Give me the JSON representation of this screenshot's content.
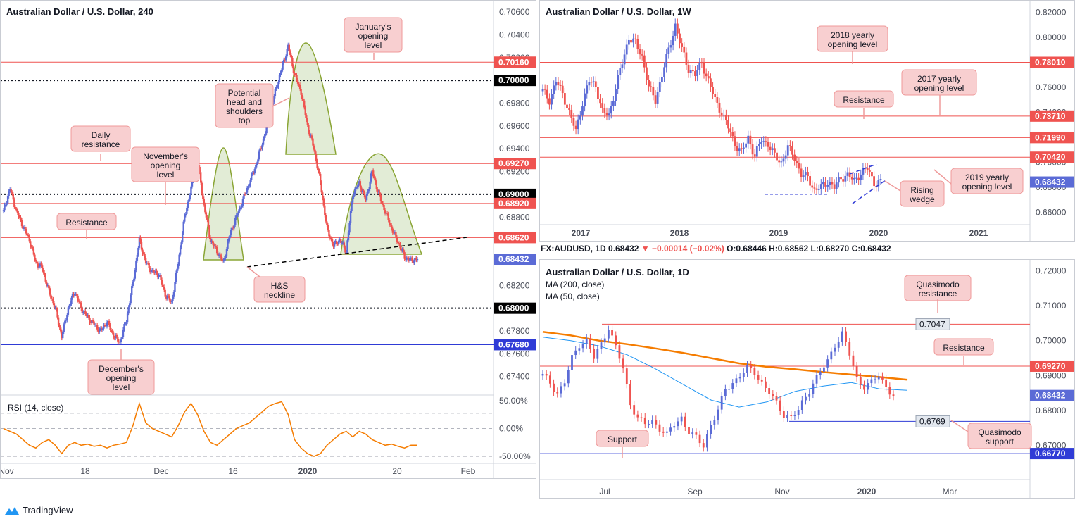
{
  "app": {
    "brand": "TradingView"
  },
  "panels": {
    "p240": {
      "title": "Australian Dollar / U.S. Dollar, 240",
      "rsi_label": "RSI (14, close)"
    },
    "p1w": {
      "title": "Australian Dollar / U.S. Dollar, 1W"
    },
    "p1d": {
      "title": "Australian Dollar / U.S. Dollar, 1D",
      "ma200": "MA (200, close)",
      "ma50": "MA (50, close)",
      "ohlc": {
        "symbol": "FX:AUDUSD, 1D",
        "last": "0.68432",
        "change": "▼ −0.00014 (−0.02%)",
        "o": "O:0.68446",
        "h": "H:0.68562",
        "l": "L:0.68270",
        "c": "C:0.68432"
      }
    }
  },
  "colors": {
    "up": "#5b6bd6",
    "down": "#ef5350",
    "level": "#ef5350",
    "support": "#2f3bd6",
    "ma200": "#f57c00",
    "ma50": "#2196f3",
    "rsi": "#f57c00",
    "pattern": "#8aa535",
    "callout_bg": "#f8cfd0",
    "callout_border": "#ef9a9a"
  },
  "chart_data": [
    {
      "type": "line",
      "panel": "p240",
      "title": "Australian Dollar / U.S. Dollar, 240",
      "ylim": [
        0.6725,
        0.7065
      ],
      "y_ticks": [
        "0.70600",
        "0.70400",
        "0.70200",
        "0.70000",
        "0.69800",
        "0.69600",
        "0.69400",
        "0.69200",
        "0.69000",
        "0.68800",
        "0.68600",
        "0.68400",
        "0.68200",
        "0.68000",
        "0.67800",
        "0.67600",
        "0.67400"
      ],
      "x_ticks": [
        "Nov",
        "18",
        "Dec",
        "16",
        "2020",
        "20",
        "Feb"
      ],
      "series": [
        {
          "values": [
            0.6885,
            0.6905,
            0.6885,
            0.6872,
            0.686,
            0.684,
            0.6835,
            0.6815,
            0.68,
            0.6775,
            0.68,
            0.6815,
            0.68,
            0.6792,
            0.6786,
            0.678,
            0.6788,
            0.6776,
            0.677,
            0.679,
            0.6822,
            0.686,
            0.684,
            0.6832,
            0.683,
            0.6812,
            0.6805,
            0.684,
            0.688,
            0.6905,
            0.693,
            0.689,
            0.686,
            0.685,
            0.684,
            0.6865,
            0.688,
            0.6895,
            0.691,
            0.6925,
            0.6945,
            0.6965,
            0.699,
            0.701,
            0.703,
            0.7005,
            0.699,
            0.696,
            0.694,
            0.691,
            0.687,
            0.6855,
            0.686,
            0.685,
            0.69,
            0.691,
            0.6895,
            0.692,
            0.69,
            0.6885,
            0.687,
            0.6858,
            0.6845,
            0.6842,
            0.6843
          ]
        }
      ],
      "levels": [
        {
          "price": 0.7016,
          "label": "0.70160",
          "style": "red"
        },
        {
          "price": 0.7,
          "label": "0.70000",
          "style": "dotted"
        },
        {
          "price": 0.6927,
          "label": "0.69270",
          "style": "red"
        },
        {
          "price": 0.69,
          "label": "0.69000",
          "style": "dotted"
        },
        {
          "price": 0.6892,
          "label": "0.68920",
          "style": "red"
        },
        {
          "price": 0.6862,
          "label": "0.68620",
          "style": "red"
        },
        {
          "price": 0.6843,
          "label": "0.68432",
          "style": "current"
        },
        {
          "price": 0.68,
          "label": "0.68000",
          "style": "dotted"
        },
        {
          "price": 0.6768,
          "label": "0.67680",
          "style": "blue"
        }
      ],
      "annotations": [
        "January's opening level",
        "Potential head and shoulders top",
        "Daily resistance",
        "November's opening level",
        "Resistance",
        "H&S neckline",
        "December's opening level"
      ],
      "rsi": {
        "label": "RSI (14, close)",
        "ylim": [
          -60,
          60
        ],
        "y_ticks": [
          "50.00%",
          "0.00%",
          "-50.00%"
        ],
        "values": [
          0,
          -5,
          -10,
          -20,
          -30,
          -35,
          -25,
          -20,
          -30,
          -45,
          -30,
          -25,
          -30,
          -28,
          -32,
          -30,
          -35,
          -30,
          -28,
          -25,
          5,
          45,
          10,
          0,
          -5,
          -10,
          -15,
          5,
          30,
          45,
          25,
          -5,
          -25,
          -30,
          -20,
          -10,
          0,
          5,
          10,
          20,
          30,
          40,
          45,
          48,
          25,
          -20,
          -35,
          -45,
          -50,
          -45,
          -30,
          -20,
          -10,
          -5,
          -15,
          -5,
          -10,
          -20,
          -25,
          -30,
          -28,
          -32,
          -35,
          -30,
          -30
        ]
      }
    },
    {
      "type": "line",
      "panel": "p1w",
      "title": "Australian Dollar / U.S. Dollar, 1W",
      "ylim": [
        0.6525,
        0.8215
      ],
      "y_ticks": [
        "0.82000",
        "0.80000",
        "0.78000",
        "0.76000",
        "0.74000",
        "0.72000",
        "0.70000",
        "0.68000",
        "0.66000"
      ],
      "x_ticks": [
        "2017",
        "2018",
        "2019",
        "2020",
        "2021"
      ],
      "series": [
        {
          "values": [
            0.757,
            0.75,
            0.765,
            0.755,
            0.74,
            0.725,
            0.748,
            0.765,
            0.762,
            0.74,
            0.738,
            0.76,
            0.78,
            0.8,
            0.795,
            0.785,
            0.76,
            0.75,
            0.77,
            0.79,
            0.81,
            0.79,
            0.775,
            0.77,
            0.78,
            0.765,
            0.75,
            0.74,
            0.728,
            0.715,
            0.708,
            0.72,
            0.705,
            0.718,
            0.715,
            0.705,
            0.7,
            0.712,
            0.704,
            0.69,
            0.688,
            0.678,
            0.68,
            0.685,
            0.68,
            0.688,
            0.69,
            0.685,
            0.692,
            0.695,
            0.684,
            0.684
          ]
        }
      ],
      "levels": [
        {
          "price": 0.7801,
          "label": "0.78010",
          "style": "red"
        },
        {
          "price": 0.7371,
          "label": "0.73710",
          "style": "red"
        },
        {
          "price": 0.7199,
          "label": "0.71990",
          "style": "red"
        },
        {
          "price": 0.7042,
          "label": "0.70420",
          "style": "red"
        },
        {
          "price": 0.6843,
          "label": "0.68432",
          "style": "current"
        }
      ],
      "annotations": [
        "2018 yearly opening level",
        "2017 yearly opening level",
        "Resistance",
        "2019 yearly opening level",
        "Rising wedge"
      ]
    },
    {
      "type": "line",
      "panel": "p1d",
      "title": "Australian Dollar / U.S. Dollar, 1D",
      "ylim": [
        0.6655,
        0.7215
      ],
      "y_ticks": [
        "0.72000",
        "0.71000",
        "0.70000",
        "0.69000",
        "0.68000",
        "0.67000"
      ],
      "x_ticks": [
        "Jul",
        "Sep",
        "Nov",
        "2020",
        "Mar"
      ],
      "series": [
        {
          "name": "MA (200, close)",
          "values": [
            0.7025,
            0.7015,
            0.7,
            0.699,
            0.6978,
            0.6965,
            0.695,
            0.6935,
            0.6925,
            0.6918,
            0.691,
            0.6903,
            0.6896,
            0.6888
          ]
        },
        {
          "name": "MA (50, close)",
          "values": [
            0.701,
            0.7,
            0.6985,
            0.696,
            0.692,
            0.6875,
            0.683,
            0.681,
            0.6825,
            0.6855,
            0.687,
            0.688,
            0.6862,
            0.6858
          ]
        },
        {
          "name": "price",
          "values": [
            0.69,
            0.688,
            0.685,
            0.688,
            0.695,
            0.699,
            0.7,
            0.695,
            0.699,
            0.704,
            0.698,
            0.692,
            0.682,
            0.678,
            0.676,
            0.677,
            0.675,
            0.673,
            0.676,
            0.678,
            0.674,
            0.672,
            0.67,
            0.676,
            0.68,
            0.686,
            0.688,
            0.69,
            0.692,
            0.691,
            0.688,
            0.685,
            0.682,
            0.679,
            0.678,
            0.68,
            0.684,
            0.688,
            0.691,
            0.694,
            0.699,
            0.702,
            0.696,
            0.689,
            0.687,
            0.688,
            0.69,
            0.687,
            0.6843
          ]
        }
      ],
      "levels": [
        {
          "price": 0.7047,
          "label": "0.7047",
          "style": "red-thin"
        },
        {
          "price": 0.6927,
          "label": "0.69270",
          "style": "red"
        },
        {
          "price": 0.6843,
          "label": "0.68432",
          "style": "current"
        },
        {
          "price": 0.6769,
          "label": "0.6769",
          "style": "blue-thin"
        },
        {
          "price": 0.6677,
          "label": "0.66770",
          "style": "blue"
        }
      ],
      "annotations": [
        "Quasimodo resistance",
        "Resistance",
        "Quasimodo support",
        "Support"
      ]
    }
  ]
}
